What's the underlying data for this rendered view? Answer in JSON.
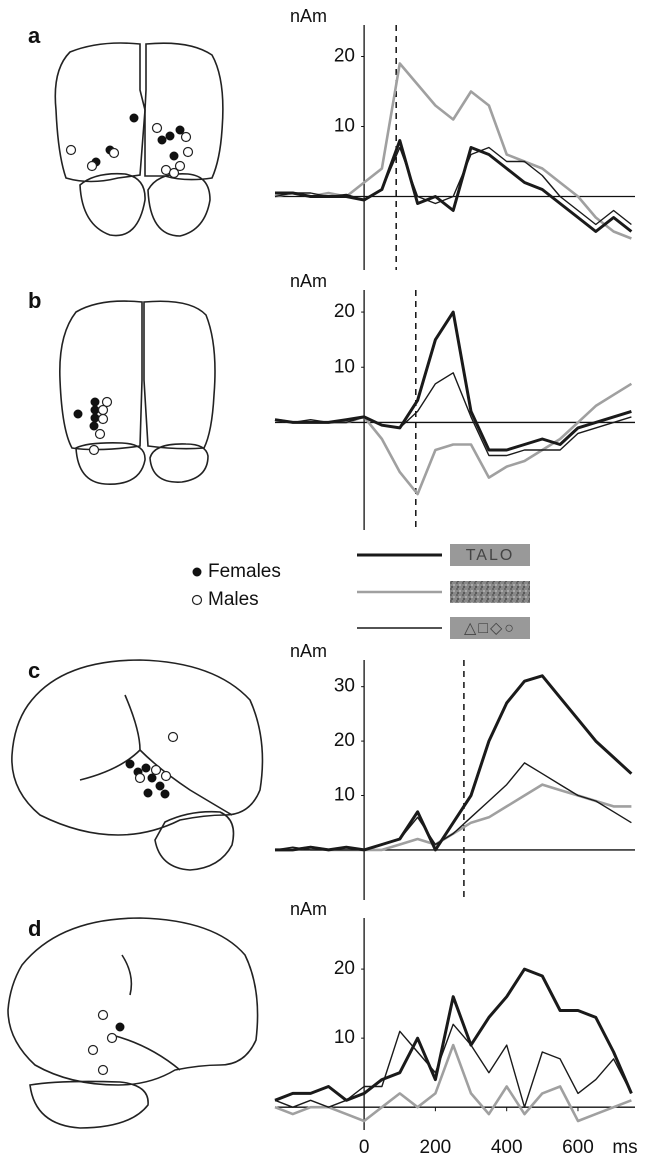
{
  "chart_data": [
    {
      "type": "line",
      "panel": "a",
      "y_unit": "nAm",
      "xlim": [
        -250,
        760
      ],
      "ylim": [
        -10.5,
        24.5
      ],
      "yticks": [
        10,
        20
      ],
      "vline": 90,
      "x": [
        -250,
        -200,
        -150,
        -100,
        -50,
        0,
        50,
        100,
        150,
        200,
        250,
        300,
        350,
        400,
        450,
        500,
        550,
        600,
        650,
        700,
        750
      ],
      "series": [
        {
          "name": "TALO",
          "color": "#1a1a1a",
          "style": "thick",
          "values": [
            0.5,
            0.5,
            0,
            0,
            0,
            -0.5,
            1,
            8,
            -1,
            0,
            -2,
            7,
            6,
            4,
            2,
            1,
            -1,
            -3,
            -5,
            -3,
            -5
          ]
        },
        {
          "color": "#a0a0a0",
          "style": "gray",
          "values": [
            0,
            0.5,
            0,
            0.5,
            0,
            2,
            4,
            19,
            16,
            13,
            11,
            15,
            13,
            6,
            5,
            4,
            2,
            0,
            -3,
            -5,
            -6
          ]
        },
        {
          "name": "△□◇○",
          "color": "#1a1a1a",
          "style": "thin",
          "values": [
            0,
            0.5,
            0.5,
            0,
            0.3,
            -0.5,
            1,
            7,
            0,
            -1,
            0,
            6,
            7,
            5,
            5,
            3,
            0,
            -2,
            -4,
            -2,
            -4
          ]
        }
      ]
    },
    {
      "type": "line",
      "panel": "b",
      "y_unit": "nAm",
      "xlim": [
        -250,
        760
      ],
      "ylim": [
        -19.5,
        24
      ],
      "yticks": [
        10,
        20
      ],
      "vline": 145,
      "x": [
        -250,
        -200,
        -150,
        -100,
        -50,
        0,
        50,
        100,
        150,
        200,
        250,
        300,
        350,
        400,
        450,
        500,
        550,
        600,
        650,
        700,
        750
      ],
      "series": [
        {
          "name": "TALO",
          "color": "#1a1a1a",
          "style": "thick",
          "values": [
            0.5,
            0,
            0,
            0,
            0.5,
            1,
            -0.5,
            -1,
            4,
            15,
            20,
            2,
            -5,
            -5,
            -4,
            -3,
            -4,
            -1,
            0,
            1,
            2
          ]
        },
        {
          "color": "#a0a0a0",
          "style": "gray",
          "values": [
            0.5,
            0,
            0,
            0,
            0,
            1,
            -3,
            -9,
            -13,
            -5,
            -4,
            -4,
            -10,
            -8,
            -7,
            -5,
            -3,
            0,
            3,
            5,
            7
          ]
        },
        {
          "name": "△□◇○",
          "color": "#1a1a1a",
          "style": "thin",
          "values": [
            0.5,
            0,
            0.5,
            0,
            0,
            1,
            -0.5,
            -1,
            2,
            7,
            9,
            1,
            -6,
            -6,
            -5,
            -5,
            -5,
            -2,
            -1,
            0,
            1
          ]
        }
      ]
    },
    {
      "type": "line",
      "panel": "c",
      "y_unit": "nAm",
      "xlim": [
        -250,
        760
      ],
      "ylim": [
        -9.2,
        34.9
      ],
      "yticks": [
        10,
        20,
        30
      ],
      "vline": 280,
      "x": [
        -250,
        -200,
        -150,
        -100,
        -50,
        0,
        50,
        100,
        150,
        200,
        250,
        300,
        350,
        400,
        450,
        500,
        550,
        600,
        650,
        700,
        750
      ],
      "series": [
        {
          "name": "TALO",
          "color": "#1a1a1a",
          "style": "thick",
          "values": [
            0,
            0,
            0.5,
            0,
            0.5,
            0,
            1,
            2,
            7,
            0,
            5,
            10,
            20,
            27,
            31,
            32,
            28,
            24,
            20,
            17,
            14
          ]
        },
        {
          "color": "#a0a0a0",
          "style": "gray",
          "values": [
            0,
            0,
            0.5,
            0,
            0,
            0,
            0,
            1,
            2,
            1,
            3,
            5,
            6,
            8,
            10,
            12,
            11,
            10,
            9,
            8,
            8
          ]
        },
        {
          "name": "△□◇○",
          "color": "#1a1a1a",
          "style": "thin",
          "values": [
            0,
            0.5,
            0,
            0,
            0,
            0,
            1,
            2,
            6,
            1,
            3,
            6,
            9,
            12,
            16,
            14,
            12,
            10,
            9,
            7,
            5
          ]
        }
      ]
    },
    {
      "type": "line",
      "panel": "d",
      "y_unit": "nAm",
      "x_unit": "ms",
      "xlim": [
        -250,
        760
      ],
      "ylim": [
        -3.3,
        27.4
      ],
      "yticks": [
        10,
        20
      ],
      "xticks": [
        0,
        200,
        400,
        600
      ],
      "x": [
        -250,
        -200,
        -150,
        -100,
        -50,
        0,
        50,
        100,
        150,
        200,
        250,
        300,
        350,
        400,
        450,
        500,
        550,
        600,
        650,
        700,
        750
      ],
      "series": [
        {
          "name": "TALO",
          "color": "#1a1a1a",
          "style": "thick",
          "values": [
            1,
            2,
            2,
            3,
            1,
            2,
            4,
            5,
            10,
            4,
            16,
            9,
            13,
            16,
            20,
            19,
            14,
            14,
            13,
            8,
            2
          ]
        },
        {
          "color": "#a0a0a0",
          "style": "gray",
          "values": [
            0,
            -1,
            0,
            0,
            -1,
            -2,
            0,
            2,
            0,
            2,
            9,
            2,
            -1,
            3,
            -1,
            2,
            3,
            -2,
            -1,
            0,
            1
          ]
        },
        {
          "name": "△□◇○",
          "color": "#1a1a1a",
          "style": "thin",
          "values": [
            1,
            0,
            1,
            0,
            1,
            3,
            3,
            11,
            8,
            5,
            12,
            9,
            5,
            9,
            0,
            8,
            7,
            2,
            4,
            7,
            2
          ]
        }
      ]
    }
  ],
  "dot_legend": {
    "filled": "Females",
    "open": "Males"
  }
}
